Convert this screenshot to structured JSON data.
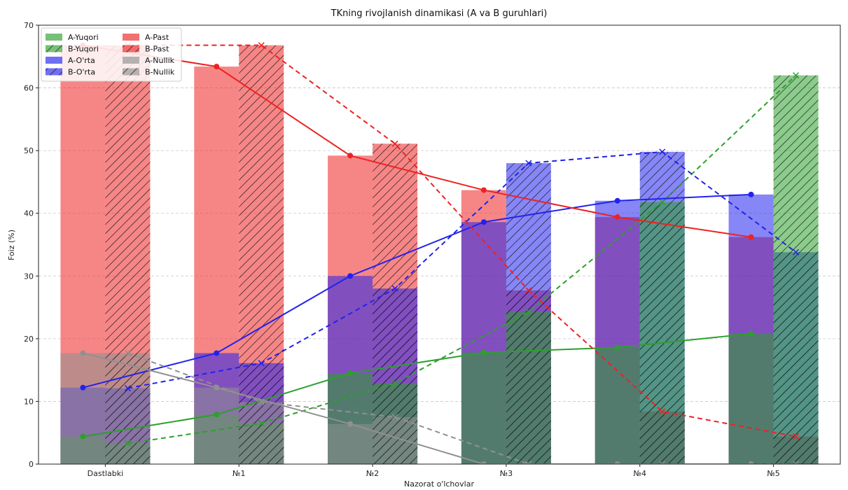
{
  "chart_data": {
    "type": "bar",
    "title": "TKning rivojlanish dinamikasi (A va B guruhlari)",
    "xlabel": "Nazorat o'lchovlar",
    "ylabel": "Foiz (%)",
    "ylim": [
      0,
      70
    ],
    "yticks": [
      0,
      10,
      20,
      30,
      40,
      50,
      60,
      70
    ],
    "grid": "horizontal-dashed",
    "legend_position": "top-left",
    "categories": [
      "Dastlabki",
      "№1",
      "№2",
      "№3",
      "№4",
      "№5"
    ],
    "series": [
      {
        "name": "A-Yuqori",
        "group": "A",
        "kind": "Yuqori",
        "color": "#2ca02c",
        "hatched": false,
        "values": [
          4.4,
          7.9,
          14.5,
          17.8,
          18.6,
          20.8
        ]
      },
      {
        "name": "B-Yuqori",
        "group": "B",
        "kind": "Yuqori",
        "color": "#2ca02c",
        "hatched": true,
        "values": [
          3.3,
          6.5,
          12.9,
          24.3,
          41.8,
          62.0
        ]
      },
      {
        "name": "A-O'rta",
        "group": "A",
        "kind": "O'rta",
        "color": "#2222ee",
        "hatched": false,
        "values": [
          12.2,
          17.7,
          30.0,
          38.6,
          42.0,
          43.0
        ]
      },
      {
        "name": "B-O'rta",
        "group": "B",
        "kind": "O'rta",
        "color": "#2222ee",
        "hatched": true,
        "values": [
          12.1,
          16.1,
          28.0,
          48.0,
          49.8,
          33.8
        ]
      },
      {
        "name": "A-Past",
        "group": "A",
        "kind": "Past",
        "color": "#ee2222",
        "hatched": false,
        "values": [
          66.8,
          63.4,
          49.2,
          43.7,
          39.4,
          36.2
        ]
      },
      {
        "name": "B-Past",
        "group": "B",
        "kind": "Past",
        "color": "#ee2222",
        "hatched": true,
        "values": [
          66.8,
          66.8,
          51.1,
          27.7,
          8.4,
          4.4
        ]
      },
      {
        "name": "A-Nullik",
        "group": "A",
        "kind": "Nullik",
        "color": "#909090",
        "hatched": false,
        "values": [
          17.7,
          12.2,
          6.4,
          0,
          0,
          0
        ]
      },
      {
        "name": "B-Nullik",
        "group": "B",
        "kind": "Nullik",
        "color": "#909090",
        "hatched": true,
        "values": [
          17.7,
          9.9,
          7.5,
          0,
          0,
          0
        ]
      }
    ],
    "legend": [
      [
        "A-Yuqori",
        "A-Past"
      ],
      [
        "B-Yuqori",
        "B-Past"
      ],
      [
        "A-O'rta",
        "A-Nullik"
      ],
      [
        "B-O'rta",
        "B-Nullik"
      ]
    ]
  }
}
